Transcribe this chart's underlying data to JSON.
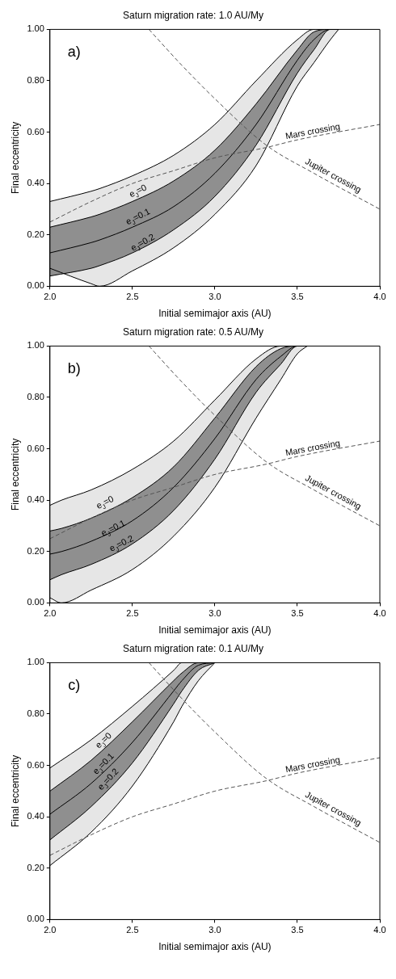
{
  "chart_data": [
    {
      "type": "line",
      "title": "Saturn migration rate: 1.0 AU/My",
      "xlabel": "Initial semimajor axis (AU)",
      "ylabel": "Final eccentricity",
      "xlim": [
        2,
        4
      ],
      "xticks": [
        {
          "value": 2,
          "label": "2.0"
        },
        {
          "value": 2.5,
          "label": "2.5"
        },
        {
          "value": 3,
          "label": "3.0"
        },
        {
          "value": 3.5,
          "label": "3.5"
        },
        {
          "value": 4,
          "label": "4.0"
        }
      ],
      "ylim": [
        0,
        1
      ],
      "yticks": [
        {
          "value": 0,
          "label": "0.00"
        },
        {
          "value": 0.2,
          "label": "0.20"
        },
        {
          "value": 0.4,
          "label": "0.40"
        },
        {
          "value": 0.6,
          "label": "0.60"
        },
        {
          "value": 0.8,
          "label": "0.80"
        },
        {
          "value": 1,
          "label": "1.00"
        }
      ],
      "legend": false,
      "grid": false,
      "series": [
        {
          "color": "#000000",
          "x": [
            2.0,
            2.25,
            2.3,
            2.5,
            2.75,
            3.0,
            3.25,
            3.5,
            3.6,
            3.7,
            3.75
          ],
          "values": [
            0.33,
            0.37,
            0.38,
            0.43,
            0.51,
            0.63,
            0.8,
            0.96,
            1.0,
            1.0,
            1.0
          ]
        },
        {
          "color": "#000000",
          "x": [
            2.0,
            2.25,
            2.3,
            2.5,
            2.75,
            3.0,
            3.25,
            3.5,
            3.6,
            3.7,
            3.75
          ],
          "values": [
            0.23,
            0.27,
            0.28,
            0.33,
            0.41,
            0.53,
            0.71,
            0.92,
            0.99,
            1.0,
            1.0
          ]
        },
        {
          "color": "#000000",
          "x": [
            2.0,
            2.25,
            2.3,
            2.5,
            2.75,
            3.0,
            3.25,
            3.5,
            3.6,
            3.7,
            3.75
          ],
          "values": [
            0.13,
            0.17,
            0.18,
            0.23,
            0.31,
            0.44,
            0.63,
            0.88,
            0.96,
            1.0,
            1.0
          ]
        },
        {
          "color": "#000000",
          "x": [
            2.0,
            2.25,
            2.3,
            2.5,
            2.75,
            3.0,
            3.25,
            3.5,
            3.6,
            3.7,
            3.75
          ],
          "values": [
            0.04,
            0.07,
            0.08,
            0.13,
            0.22,
            0.35,
            0.55,
            0.83,
            0.92,
            1.0,
            1.0
          ]
        },
        {
          "color": "#000000",
          "x": [
            2.0,
            2.25,
            2.3,
            2.5,
            2.75,
            3.0,
            3.25,
            3.5,
            3.6,
            3.7,
            3.75
          ],
          "values": [
            0.07,
            0.01,
            0.0,
            0.06,
            0.15,
            0.28,
            0.47,
            0.78,
            0.87,
            0.96,
            1.0
          ]
        },
        {
          "color": "#555555",
          "line_style": "dashed",
          "x": [
            2.0,
            2.25,
            2.5,
            2.75,
            3.0,
            3.31,
            3.5,
            4.0
          ],
          "values": [
            0.25,
            0.33,
            0.4,
            0.45,
            0.5,
            0.54,
            0.57,
            0.63
          ]
        },
        {
          "color": "#555555",
          "line_style": "dashed",
          "x": [
            2.6,
            2.8,
            3.0,
            3.31,
            3.6,
            4.0
          ],
          "values": [
            1.0,
            0.86,
            0.73,
            0.55,
            0.44,
            0.3
          ]
        }
      ],
      "annotations": [
        "a)",
        {
          "text": "e$_{J}$=0",
          "x": 2.55,
          "y": 0.35
        },
        {
          "text": "e$_{J}$=0.1",
          "x": 2.55,
          "y": 0.25
        },
        {
          "text": "e$_{J}$=0.2",
          "x": 2.58,
          "y": 0.15
        },
        {
          "text": "Mars crossing",
          "x": 3.6,
          "y": 0.58
        },
        {
          "text": "Jupiter crossing",
          "x": 3.7,
          "y": 0.41
        }
      ]
    },
    {
      "type": "line",
      "title": "Saturn migration rate: 0.5 AU/My",
      "xlabel": "Initial semimajor axis (AU)",
      "ylabel": "Final eccentricity",
      "xlim": [
        2,
        4
      ],
      "xticks": [
        {
          "value": 2,
          "label": "2.0"
        },
        {
          "value": 2.5,
          "label": "2.5"
        },
        {
          "value": 3,
          "label": "3.0"
        },
        {
          "value": 3.5,
          "label": "3.5"
        },
        {
          "value": 4,
          "label": "4.0"
        }
      ],
      "ylim": [
        0,
        1
      ],
      "yticks": [
        {
          "value": 0,
          "label": "0.00"
        },
        {
          "value": 0.2,
          "label": "0.20"
        },
        {
          "value": 0.4,
          "label": "0.40"
        },
        {
          "value": 0.6,
          "label": "0.60"
        },
        {
          "value": 0.8,
          "label": "0.80"
        },
        {
          "value": 1,
          "label": "1.00"
        }
      ],
      "legend": false,
      "grid": false,
      "series": [
        {
          "color": "#000000",
          "x": [
            2.0,
            2.07,
            2.25,
            2.5,
            2.75,
            3.0,
            3.25,
            3.4,
            3.5,
            3.56
          ],
          "values": [
            0.38,
            0.4,
            0.44,
            0.52,
            0.63,
            0.79,
            0.95,
            1.0,
            1.0,
            1.0
          ]
        },
        {
          "color": "#000000",
          "x": [
            2.0,
            2.07,
            2.25,
            2.5,
            2.75,
            3.0,
            3.25,
            3.4,
            3.5,
            3.56
          ],
          "values": [
            0.28,
            0.29,
            0.33,
            0.41,
            0.53,
            0.72,
            0.92,
            0.99,
            1.0,
            1.0
          ]
        },
        {
          "color": "#000000",
          "x": [
            2.0,
            2.07,
            2.25,
            2.5,
            2.75,
            3.0,
            3.25,
            3.4,
            3.5,
            3.56
          ],
          "values": [
            0.19,
            0.2,
            0.24,
            0.32,
            0.45,
            0.64,
            0.87,
            0.96,
            1.0,
            1.0
          ]
        },
        {
          "color": "#000000",
          "x": [
            2.0,
            2.07,
            2.25,
            2.5,
            2.75,
            3.0,
            3.25,
            3.4,
            3.5,
            3.56
          ],
          "values": [
            0.09,
            0.11,
            0.15,
            0.23,
            0.36,
            0.56,
            0.82,
            0.93,
            1.0,
            1.0
          ]
        },
        {
          "color": "#000000",
          "x": [
            2.0,
            2.07,
            2.25,
            2.5,
            2.75,
            3.0,
            3.25,
            3.4,
            3.5,
            3.56
          ],
          "values": [
            0.02,
            0.0,
            0.05,
            0.13,
            0.26,
            0.45,
            0.72,
            0.87,
            0.97,
            1.0
          ]
        },
        {
          "color": "#555555",
          "line_style": "dashed",
          "x": [
            2.0,
            2.25,
            2.5,
            2.75,
            3.0,
            3.31,
            3.5,
            4.0
          ],
          "values": [
            0.25,
            0.33,
            0.4,
            0.45,
            0.5,
            0.54,
            0.57,
            0.63
          ]
        },
        {
          "color": "#555555",
          "line_style": "dashed",
          "x": [
            2.6,
            2.8,
            3.0,
            3.31,
            3.6,
            4.0
          ],
          "values": [
            1.0,
            0.86,
            0.73,
            0.55,
            0.44,
            0.3
          ]
        }
      ],
      "annotations": [
        "b)",
        {
          "text": "e$_{J}$=0",
          "x": 2.35,
          "y": 0.37
        },
        {
          "text": "e$_{J}$=0.1",
          "x": 2.4,
          "y": 0.27
        },
        {
          "text": "e$_{J}$=0.2",
          "x": 2.45,
          "y": 0.21
        },
        {
          "text": "Mars crossing",
          "x": 3.6,
          "y": 0.58
        },
        {
          "text": "Jupiter crossing",
          "x": 3.7,
          "y": 0.41
        }
      ]
    },
    {
      "type": "line",
      "title": "Saturn migration rate: 0.1 AU/My",
      "xlabel": "Initial semimajor axis (AU)",
      "ylabel": "Final eccentricity",
      "xlim": [
        2,
        4
      ],
      "xticks": [
        {
          "value": 2,
          "label": "2.0"
        },
        {
          "value": 2.5,
          "label": "2.5"
        },
        {
          "value": 3,
          "label": "3.0"
        },
        {
          "value": 3.5,
          "label": "3.5"
        },
        {
          "value": 4,
          "label": "4.0"
        }
      ],
      "ylim": [
        0,
        1
      ],
      "yticks": [
        {
          "value": 0,
          "label": "0.00"
        },
        {
          "value": 0.2,
          "label": "0.20"
        },
        {
          "value": 0.4,
          "label": "0.40"
        },
        {
          "value": 0.6,
          "label": "0.60"
        },
        {
          "value": 0.8,
          "label": "0.80"
        },
        {
          "value": 1,
          "label": "1.00"
        }
      ],
      "legend": false,
      "grid": false,
      "series": [
        {
          "color": "#000000",
          "x": [
            2.0,
            2.25,
            2.5,
            2.75,
            2.8,
            2.9,
            3.0
          ],
          "values": [
            0.59,
            0.7,
            0.83,
            0.97,
            1.0,
            1.0,
            1.0
          ]
        },
        {
          "color": "#000000",
          "x": [
            2.0,
            2.25,
            2.5,
            2.75,
            2.8,
            2.9,
            3.0
          ],
          "values": [
            0.5,
            0.62,
            0.77,
            0.93,
            0.96,
            1.0,
            1.0
          ]
        },
        {
          "color": "#000000",
          "x": [
            2.0,
            2.25,
            2.5,
            2.75,
            2.8,
            2.9,
            3.0
          ],
          "values": [
            0.41,
            0.53,
            0.69,
            0.89,
            0.93,
            0.99,
            1.0
          ]
        },
        {
          "color": "#000000",
          "x": [
            2.0,
            2.25,
            2.5,
            2.75,
            2.8,
            2.9,
            3.0
          ],
          "values": [
            0.31,
            0.44,
            0.61,
            0.84,
            0.89,
            0.97,
            1.0
          ]
        },
        {
          "color": "#000000",
          "x": [
            2.0,
            2.25,
            2.5,
            2.75,
            2.8,
            2.9,
            3.0
          ],
          "values": [
            0.21,
            0.34,
            0.52,
            0.77,
            0.83,
            0.93,
            1.0
          ]
        },
        {
          "color": "#555555",
          "line_style": "dashed",
          "x": [
            2.0,
            2.25,
            2.5,
            2.75,
            3.0,
            3.31,
            3.5,
            4.0
          ],
          "values": [
            0.25,
            0.33,
            0.4,
            0.45,
            0.5,
            0.54,
            0.57,
            0.63
          ]
        },
        {
          "color": "#555555",
          "line_style": "dashed",
          "x": [
            2.6,
            2.8,
            3.0,
            3.31,
            3.6,
            4.0
          ],
          "values": [
            1.0,
            0.86,
            0.73,
            0.55,
            0.44,
            0.3
          ]
        }
      ],
      "annotations": [
        "c)",
        {
          "text": "e$_{J}$=0",
          "x": 2.35,
          "y": 0.68
        },
        {
          "text": "e$_{J}$=0.1",
          "x": 2.35,
          "y": 0.59
        },
        {
          "text": "e$_{J}$=0.2",
          "x": 2.38,
          "y": 0.53
        },
        {
          "text": "Mars crossing",
          "x": 3.6,
          "y": 0.58
        },
        {
          "text": "Jupiter crossing",
          "x": 3.7,
          "y": 0.41
        }
      ]
    }
  ]
}
